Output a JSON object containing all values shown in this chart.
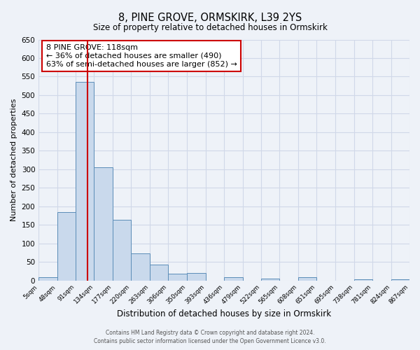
{
  "title": "8, PINE GROVE, ORMSKIRK, L39 2YS",
  "subtitle": "Size of property relative to detached houses in Ormskirk",
  "xlabel": "Distribution of detached houses by size in Ormskirk",
  "ylabel": "Number of detached properties",
  "bin_edges": [
    5,
    48,
    91,
    134,
    177,
    220,
    263,
    306,
    350,
    393,
    436,
    479,
    522,
    565,
    608,
    651,
    695,
    738,
    781,
    824,
    867
  ],
  "bar_heights": [
    9,
    185,
    535,
    305,
    163,
    73,
    42,
    19,
    20,
    0,
    9,
    0,
    5,
    0,
    9,
    0,
    0,
    3,
    0,
    3
  ],
  "bar_color": "#c9d9ec",
  "bar_edge_color": "#5b8db8",
  "vline_color": "#cc0000",
  "vline_x": 118,
  "annotation_text": "8 PINE GROVE: 118sqm\n← 36% of detached houses are smaller (490)\n63% of semi-detached houses are larger (852) →",
  "annotation_box_color": "white",
  "annotation_box_edge_color": "#cc0000",
  "ylim": [
    0,
    650
  ],
  "yticks": [
    0,
    50,
    100,
    150,
    200,
    250,
    300,
    350,
    400,
    450,
    500,
    550,
    600,
    650
  ],
  "footer_line1": "Contains HM Land Registry data © Crown copyright and database right 2024.",
  "footer_line2": "Contains public sector information licensed under the Open Government Licence v3.0.",
  "bg_color": "#eef2f8",
  "grid_color": "#d0d8e8"
}
